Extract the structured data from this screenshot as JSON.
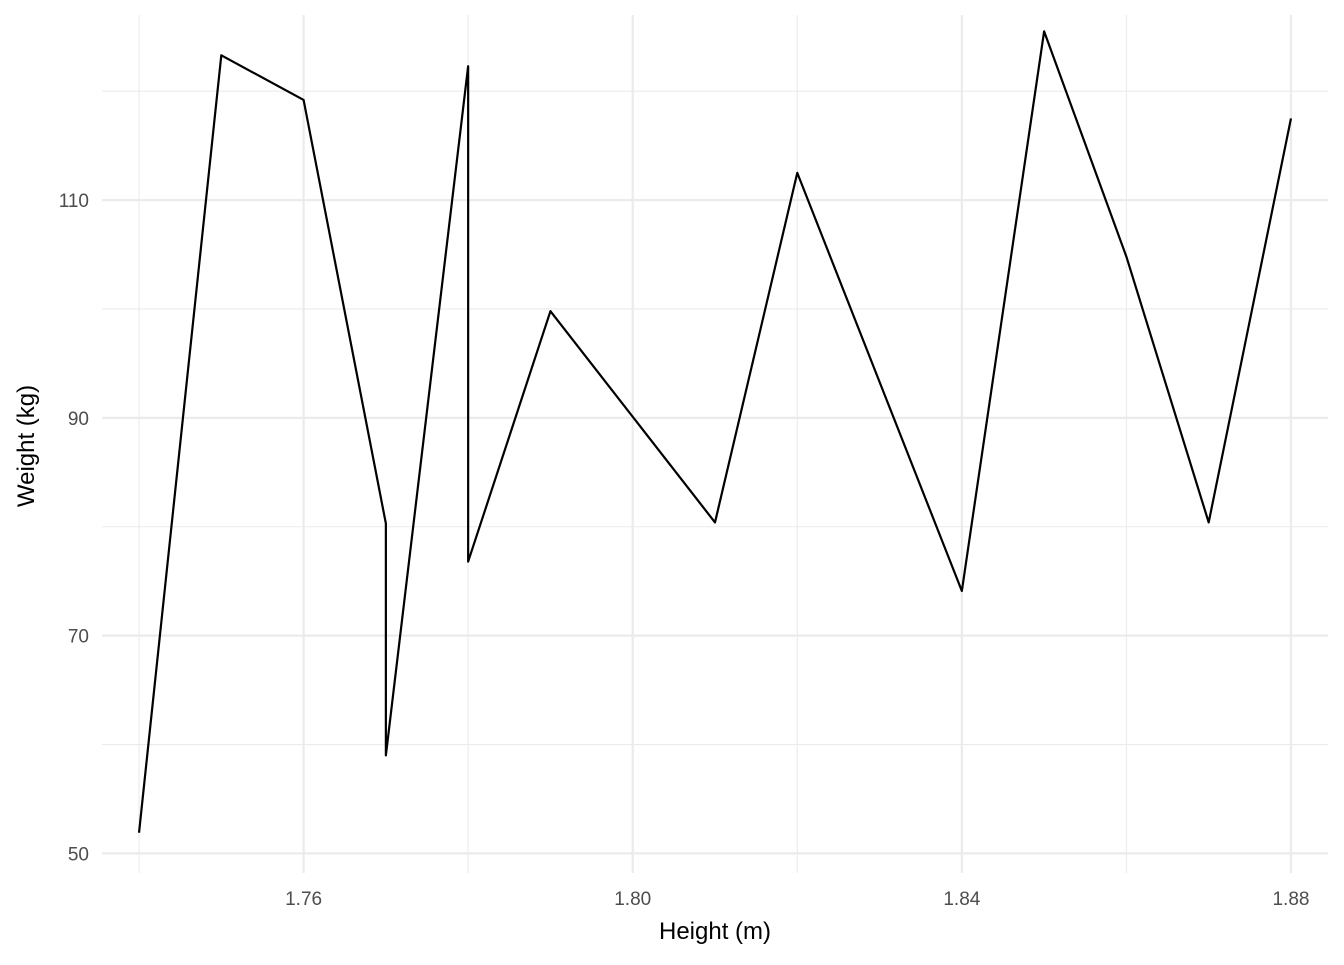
{
  "chart_data": {
    "type": "line",
    "xlabel": "Height (m)",
    "ylabel": "Weight (kg)",
    "xlim": [
      1.7355,
      1.8845
    ],
    "ylim": [
      48.2,
      127.0
    ],
    "x_major_ticks": [
      1.76,
      1.8,
      1.84,
      1.88
    ],
    "x_tick_labels": [
      "1.76",
      "1.80",
      "1.84",
      "1.88"
    ],
    "x_minor_ticks": [
      1.74,
      1.78,
      1.82,
      1.86
    ],
    "y_major_ticks": [
      50,
      70,
      90,
      110
    ],
    "y_tick_labels": [
      "50",
      "70",
      "90",
      "110"
    ],
    "y_minor_ticks": [
      60,
      80,
      100,
      120
    ],
    "grid": true,
    "line_color": "#000000",
    "series": [
      {
        "x": [
          1.74,
          1.75,
          1.76,
          1.77,
          1.77,
          1.78,
          1.78,
          1.79,
          1.81,
          1.82,
          1.84,
          1.85,
          1.86,
          1.87,
          1.88
        ],
        "values": [
          51.9,
          123.3,
          119.2,
          80.3,
          59.0,
          122.3,
          76.8,
          99.8,
          80.4,
          112.5,
          74.1,
          125.5,
          104.8,
          80.4,
          117.5
        ]
      }
    ]
  }
}
